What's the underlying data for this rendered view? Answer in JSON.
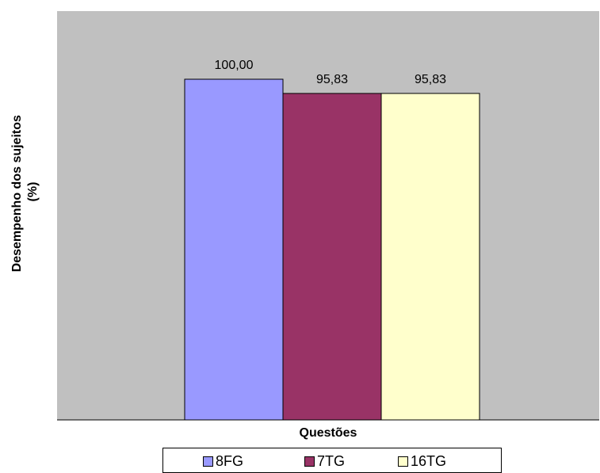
{
  "chart_data": {
    "type": "bar",
    "categories": [
      ""
    ],
    "series": [
      {
        "name": "8FG",
        "values": [
          100.0
        ],
        "label": "100,00",
        "color": "#9999ff"
      },
      {
        "name": "7TG",
        "values": [
          95.83
        ],
        "label": "95,83",
        "color": "#993366"
      },
      {
        "name": "16TG",
        "values": [
          95.83
        ],
        "label": "95,83",
        "color": "#ffffcc"
      }
    ],
    "xlabel": "Questões",
    "ylabel_lines": [
      "Desempenho dos sujeitos",
      "(%)"
    ],
    "ylim": [
      0,
      120
    ],
    "grid": false,
    "plot_background": "#c0c0c0",
    "legend_position": "bottom"
  }
}
